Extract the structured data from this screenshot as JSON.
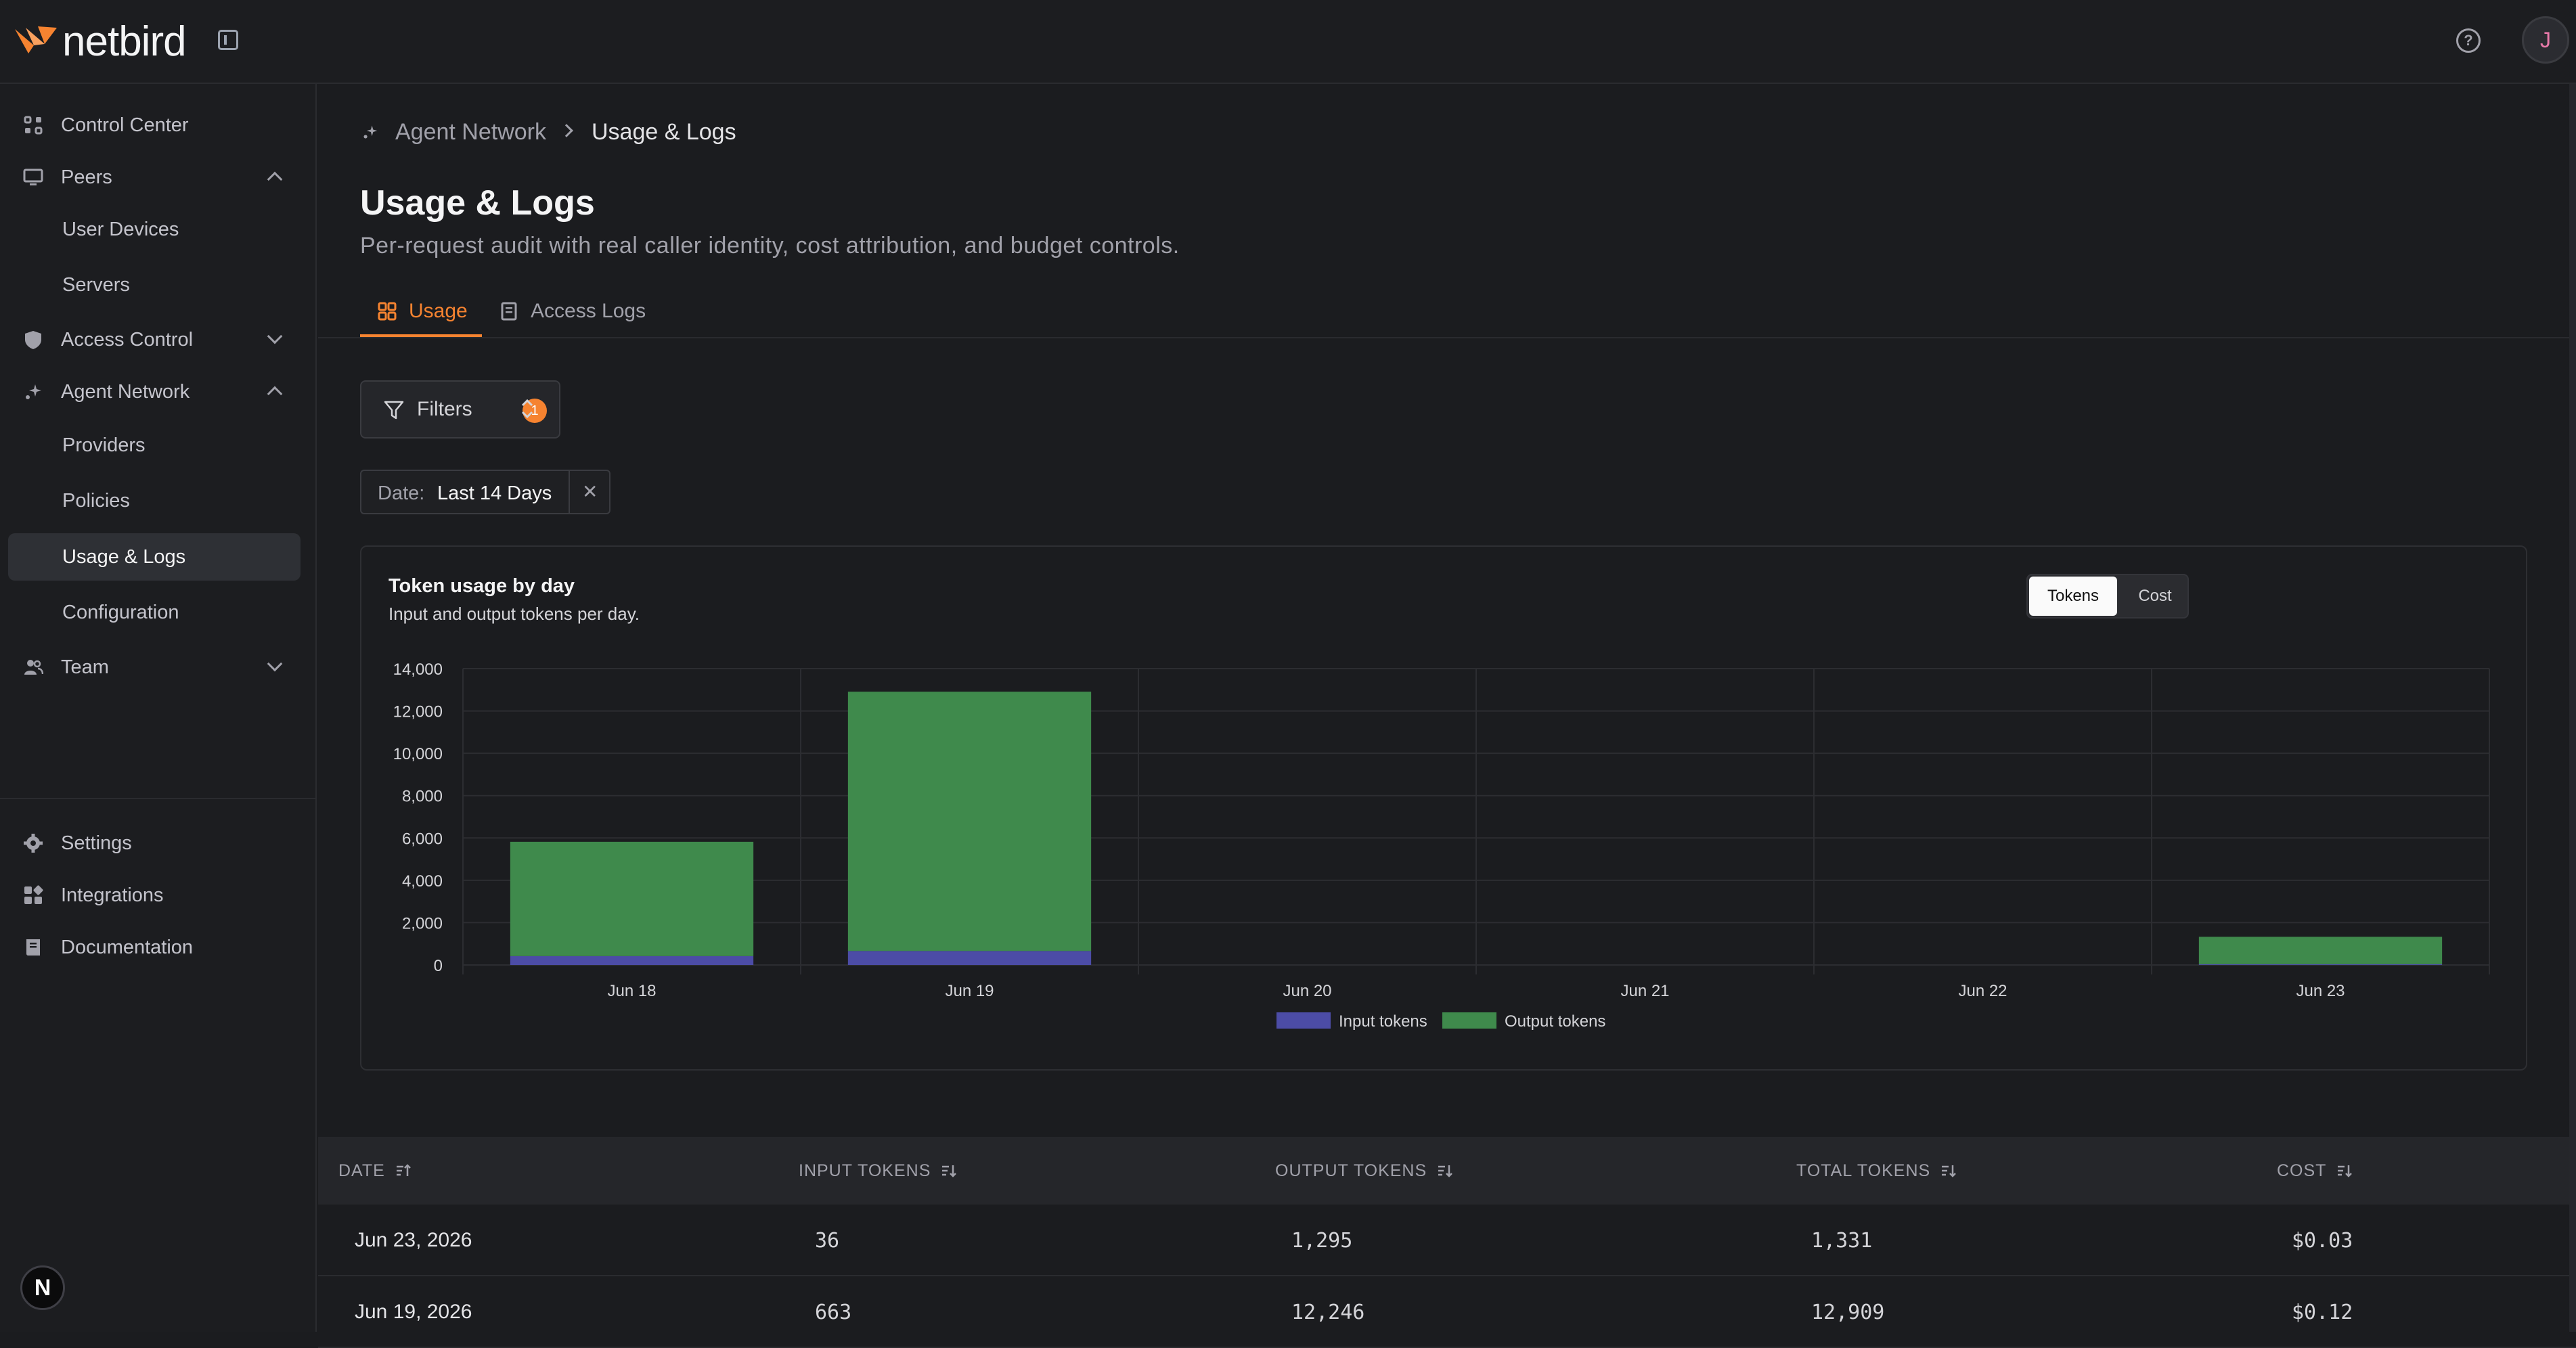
{
  "app": {
    "brand": "netbird",
    "avatar_initial": "J",
    "bottom_badge": "N"
  },
  "sidebar": {
    "items": [
      {
        "label": "Control Center"
      },
      {
        "label": "Peers"
      },
      {
        "label": "User Devices"
      },
      {
        "label": "Servers"
      },
      {
        "label": "Access Control"
      },
      {
        "label": "Agent Network"
      },
      {
        "label": "Providers"
      },
      {
        "label": "Policies"
      },
      {
        "label": "Usage & Logs"
      },
      {
        "label": "Configuration"
      },
      {
        "label": "Team"
      },
      {
        "label": "Settings"
      },
      {
        "label": "Integrations"
      },
      {
        "label": "Documentation"
      }
    ]
  },
  "breadcrumb": {
    "parent": "Agent Network",
    "current": "Usage & Logs"
  },
  "page": {
    "title": "Usage & Logs",
    "subtitle": "Per-request audit with real caller identity, cost attribution, and budget controls."
  },
  "tabs": {
    "usage": "Usage",
    "access_logs": "Access Logs"
  },
  "filters": {
    "label": "Filters",
    "count": "1",
    "chip_key": "Date:",
    "chip_value": "Last 14 Days"
  },
  "card": {
    "title": "Token usage by day",
    "subtitle": "Input and output tokens per day.",
    "toggle_tokens": "Tokens",
    "toggle_cost": "Cost"
  },
  "chart_data": {
    "type": "bar",
    "stacked": true,
    "categories": [
      "Jun 18",
      "Jun 19",
      "Jun 20",
      "Jun 21",
      "Jun 22",
      "Jun 23"
    ],
    "series": [
      {
        "name": "Input tokens",
        "color": "#4c4ca6",
        "values": [
          420,
          663,
          0,
          0,
          0,
          36
        ]
      },
      {
        "name": "Output tokens",
        "color": "#3f8a4c",
        "values": [
          5400,
          12246,
          0,
          0,
          0,
          1295
        ]
      }
    ],
    "yticks": [
      "0",
      "2,000",
      "4,000",
      "6,000",
      "8,000",
      "10,000",
      "12,000",
      "14,000"
    ],
    "ylim": [
      0,
      14000
    ],
    "legend": "bottom-center",
    "grid": true
  },
  "table": {
    "headers": [
      "DATE",
      "INPUT TOKENS",
      "OUTPUT TOKENS",
      "TOTAL TOKENS",
      "COST"
    ],
    "rows": [
      {
        "date": "Jun 23, 2026",
        "input": "36",
        "output": "1,295",
        "total": "1,331",
        "cost": "$0.03"
      },
      {
        "date": "Jun 19, 2026",
        "input": "663",
        "output": "12,246",
        "total": "12,909",
        "cost": "$0.12"
      }
    ]
  }
}
